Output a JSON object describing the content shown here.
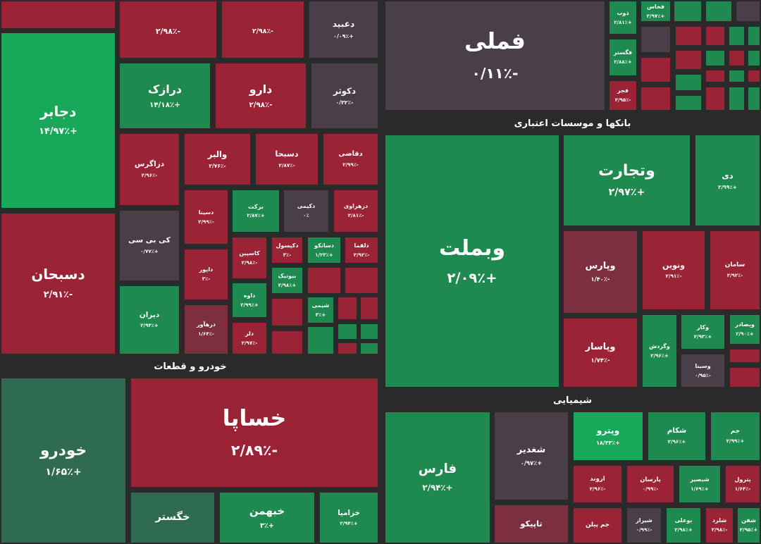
{
  "sections": [
    {
      "title": "خودرو و قطعات"
    },
    {
      "title": "بانکها و موسسات اعتباری"
    },
    {
      "title": "شیمیایی"
    }
  ],
  "tiles": [
    {
      "change": "-۲/۹۸٪"
    },
    {
      "change": "-۲/۹۸٪"
    },
    {
      "name": "دعبید",
      "change": "+۰/۰۹٪"
    },
    {
      "name": "دجابر",
      "change": "+۱۴/۹۷٪"
    },
    {
      "name": "درازک",
      "change": "+۱۴/۱۸٪"
    },
    {
      "name": "دارو",
      "change": "-۲/۹۸٪"
    },
    {
      "name": "دکوثر",
      "change": "-۰/۳۲٪"
    },
    {
      "name": "دزاگرس",
      "change": "-۲/۹۶٪"
    },
    {
      "name": "والبر",
      "change": "-۲/۷۶٪"
    },
    {
      "name": "دسبحا",
      "change": "-۲/۸۷٪"
    },
    {
      "name": "دقاضی",
      "change": "-۲/۹۹٪"
    },
    {
      "name": "دسبحان",
      "change": "-۲/۹۱٪"
    },
    {
      "name": "کی بی سی",
      "change": "+۰/۷۷٪"
    },
    {
      "name": "دیران",
      "change": "+۲/۹۴٪"
    },
    {
      "name": "دسینا",
      "change": "-۲/۹۹٪"
    },
    {
      "name": "برکت",
      "change": "+۲/۸۷٪"
    },
    {
      "name": "دکیمی",
      "change": "۰٪"
    },
    {
      "name": "دزهراوی",
      "change": "-۲/۸۱٪"
    },
    {
      "name": "داپور",
      "change": "-۳٪"
    },
    {
      "name": "درهآور",
      "change": "-۱/۶۴٪"
    },
    {
      "name": "کاسپین",
      "change": "-۲/۹۸٪"
    },
    {
      "name": "دکپسول",
      "change": "-۳٪"
    },
    {
      "name": "دسانکو",
      "change": "+۱/۲۳٪"
    },
    {
      "name": "دلقما",
      "change": "-۲/۹۲٪"
    },
    {
      "name": "بیوتیک",
      "change": "+۲/۹۸٪"
    },
    {
      "name": "داوه",
      "change": "+۲/۹۹٪"
    },
    {
      "name": "دلر",
      "change": "-۲/۹۷٪"
    },
    {
      "name": "شیمی",
      "change": "+۳٪"
    },
    {
      "name": "خودرو",
      "change": "+۱/۶۵٪"
    },
    {
      "name": "خساپا",
      "change": "-۲/۸۹٪"
    },
    {
      "name": "خگستر"
    },
    {
      "name": "خبهمن",
      "change": "+۳٪"
    },
    {
      "name": "خزامیا",
      "change": "+۲/۹۴٪"
    },
    {
      "name": "فملی",
      "change": "-۰/۱۱٪"
    },
    {
      "name": "ذوب",
      "change": "+۲/۸۱٪"
    },
    {
      "name": "فخاس",
      "change": "+۲/۹۷٪"
    },
    {
      "name": "فگستر",
      "change": "+۲/۸۸٪"
    },
    {
      "name": "فجر",
      "change": "-۲/۹۵٪"
    },
    {
      "name": "وبملت",
      "change": "+۲/۰۹٪"
    },
    {
      "name": "وتجارت",
      "change": "+۲/۹۷٪"
    },
    {
      "name": "دی",
      "change": "+۲/۹۹٪"
    },
    {
      "name": "وپارس",
      "change": "-۱/۴۰٪"
    },
    {
      "name": "ونوین",
      "change": "-۲/۹۱٪"
    },
    {
      "name": "سامان",
      "change": "-۲/۹۲٪"
    },
    {
      "name": "وپاسار",
      "change": "-۱/۷۴٪"
    },
    {
      "name": "وگردش",
      "change": "+۲/۹۶٪"
    },
    {
      "name": "وکار",
      "change": "+۲/۹۳٪"
    },
    {
      "name": "وبصادر",
      "change": "+۲/۹۰٪"
    },
    {
      "name": "وسینا",
      "change": "-۰/۹۵٪"
    },
    {
      "name": "فارس",
      "change": "+۲/۹۴٪"
    },
    {
      "name": "شغدیر",
      "change": "+۰/۹۷٪"
    },
    {
      "name": "وپترو",
      "change": "+۱۸/۴۳٪"
    },
    {
      "name": "شکام",
      "change": "+۲/۹۶٪"
    },
    {
      "name": "جم",
      "change": "+۲/۹۹٪"
    },
    {
      "name": "اروند",
      "change": "-۲/۹۶٪"
    },
    {
      "name": "پارسان",
      "change": "-۰/۹۹٪"
    },
    {
      "name": "شبصیر",
      "change": "+۱/۶۹٪"
    },
    {
      "name": "پترول",
      "change": "-۱/۶۴٪"
    },
    {
      "name": "تاپیکو"
    },
    {
      "name": "جم پیلن"
    },
    {
      "name": "شیراز",
      "change": "-۰/۹۹٪"
    },
    {
      "name": "بوعلی",
      "change": "+۲/۹۸٪"
    },
    {
      "name": "شلرد",
      "change": "-۲/۹۸٪"
    },
    {
      "name": "شفن",
      "change": "+۲/۹۵٪"
    }
  ]
}
